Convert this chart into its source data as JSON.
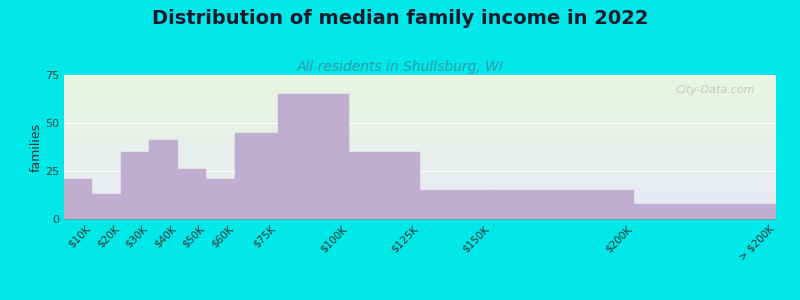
{
  "title": "Distribution of median family income in 2022",
  "subtitle": "All residents in Shullsburg, WI",
  "ylabel": "families",
  "categories": [
    "$10K",
    "$20K",
    "$30K",
    "$40K",
    "$50K",
    "$60K",
    "$75K",
    "$100K",
    "$125K",
    "$150K",
    "$200K",
    "> $200K"
  ],
  "values": [
    21,
    13,
    35,
    41,
    26,
    21,
    45,
    65,
    35,
    15,
    15,
    8
  ],
  "bar_color": "#c0aed0",
  "background_color": "#00e8e8",
  "plot_bg_color_top": "#e8f5e0",
  "plot_bg_color_bottom": "#e8e8f5",
  "ylim": [
    0,
    75
  ],
  "yticks": [
    0,
    25,
    50,
    75
  ],
  "title_fontsize": 14,
  "subtitle_fontsize": 10,
  "subtitle_color": "#3399aa",
  "ylabel_fontsize": 9,
  "watermark_text": "City-Data.com"
}
